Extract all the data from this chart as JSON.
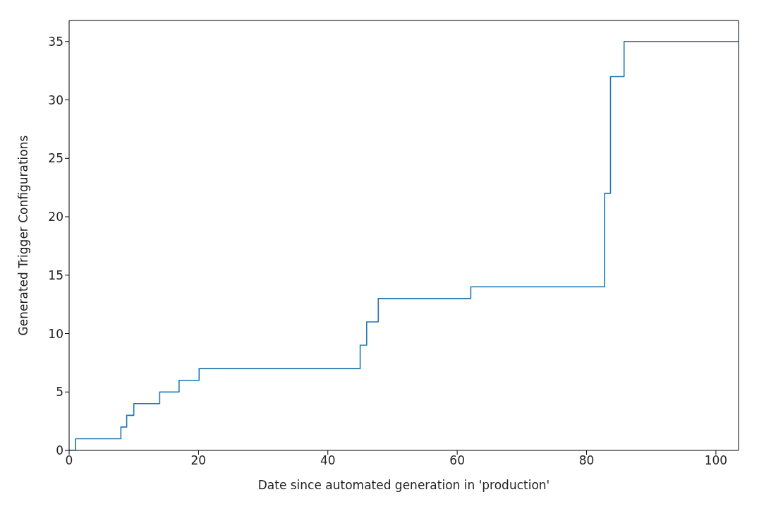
{
  "chart_data": {
    "type": "step",
    "xlabel": "Date since automated generation in 'production'",
    "ylabel": "Generated Trigger Configurations",
    "x": [
      0,
      1,
      8,
      8.9,
      10,
      14,
      17,
      20.1,
      45,
      46,
      47.8,
      62.1,
      82.8,
      83.7,
      85.8,
      103.5
    ],
    "values": [
      0,
      1,
      2,
      3,
      4,
      5,
      6,
      7,
      9,
      11,
      13,
      14,
      22,
      32,
      35,
      35
    ],
    "color": "#1f77b4",
    "xlim": [
      0,
      103.5
    ],
    "ylim": [
      0,
      36.8
    ],
    "xticks": [
      0,
      20,
      40,
      60,
      80,
      100
    ],
    "yticks": [
      0,
      5,
      10,
      15,
      20,
      25,
      30,
      35
    ],
    "grid": false,
    "marker": "none",
    "line_style": "solid"
  }
}
